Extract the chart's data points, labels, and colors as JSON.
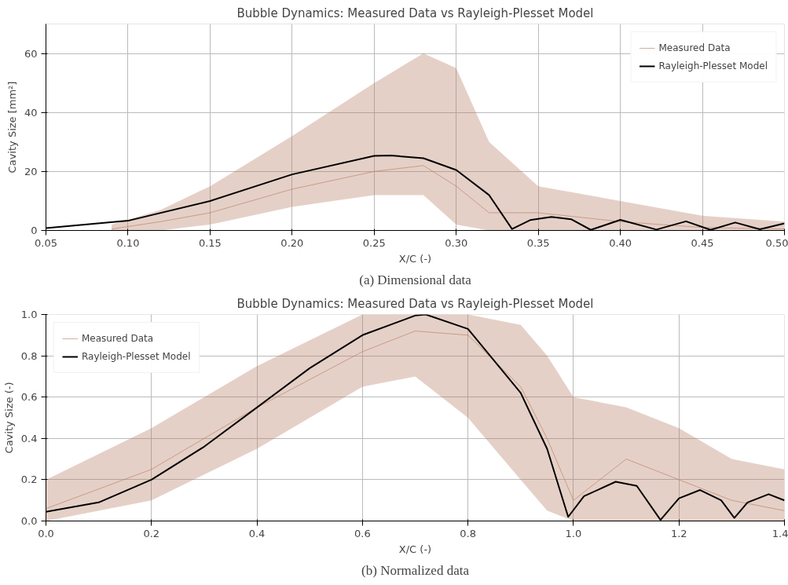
{
  "chart_data": [
    {
      "type": "line",
      "title": "Bubble Dynamics: Measured Data vs Rayleigh-Plesset Model",
      "xlabel": "X/C (-)",
      "ylabel": "Cavity Size [mm²]",
      "annotations": [
        "(a) Dimensional data"
      ],
      "xlim": [
        0.05,
        0.5
      ],
      "ylim": [
        0,
        70
      ],
      "xticks": [
        {
          "value": 0.05,
          "label": "0.05"
        },
        {
          "value": 0.1,
          "label": "0.10"
        },
        {
          "value": 0.15,
          "label": "0.15"
        },
        {
          "value": 0.2,
          "label": "0.20"
        },
        {
          "value": 0.25,
          "label": "0.25"
        },
        {
          "value": 0.3,
          "label": "0.30"
        },
        {
          "value": 0.35,
          "label": "0.35"
        },
        {
          "value": 0.4,
          "label": "0.40"
        },
        {
          "value": 0.45,
          "label": "0.45"
        },
        {
          "value": 0.5,
          "label": "0.50"
        }
      ],
      "yticks": [
        0,
        20,
        40,
        60
      ],
      "grid": true,
      "legend": "top right",
      "series": [
        {
          "name": "Measured Data",
          "color": "#b5785e",
          "x": [
            0.09,
            0.12,
            0.15,
            0.2,
            0.25,
            0.28,
            0.3,
            0.32,
            0.35,
            0.4,
            0.45,
            0.5
          ],
          "values": [
            0.5,
            3,
            6,
            14,
            20,
            22,
            15,
            6,
            6,
            3,
            1,
            0.5
          ],
          "lower": [
            0,
            0,
            2,
            8,
            12,
            12,
            2,
            0,
            0,
            0,
            0,
            0
          ],
          "upper": [
            2,
            7,
            15,
            32,
            50,
            60,
            55,
            30,
            15,
            10,
            5,
            3
          ]
        },
        {
          "name": "Rayleigh-Plesset Model",
          "color": "#000000",
          "x": [
            0.05,
            0.1,
            0.15,
            0.2,
            0.25,
            0.26,
            0.28,
            0.3,
            0.32,
            0.334,
            0.345,
            0.358,
            0.37,
            0.382,
            0.4,
            0.422,
            0.44,
            0.455,
            0.47,
            0.485,
            0.5
          ],
          "values": [
            0.8,
            3.3,
            10,
            19,
            25.3,
            25.4,
            24.5,
            20.5,
            12,
            0.5,
            3.5,
            4.6,
            3.8,
            0.2,
            3.6,
            0.3,
            3.1,
            0.2,
            2.7,
            0.4,
            2.4
          ]
        }
      ]
    },
    {
      "type": "line",
      "title": "Bubble Dynamics: Measured Data vs Rayleigh-Plesset Model",
      "xlabel": "X/C (-)",
      "ylabel": "Cavity Size (-)",
      "annotations": [
        "(b) Normalized data"
      ],
      "xlim": [
        0,
        1.4
      ],
      "ylim": [
        0,
        1
      ],
      "xticks": [
        {
          "value": 0,
          "label": "0.0"
        },
        0.2,
        0.4,
        0.6,
        0.8,
        {
          "value": 1,
          "label": "1.0"
        },
        1.2,
        1.4
      ],
      "yticks": [
        {
          "value": 0,
          "label": "0.0"
        },
        0.2,
        0.4,
        0.6,
        0.8,
        {
          "value": 1,
          "label": "1.0"
        }
      ],
      "grid": true,
      "legend": "top left",
      "series": [
        {
          "name": "Measured Data",
          "color": "#b5785e",
          "x": [
            0,
            0.2,
            0.4,
            0.6,
            0.7,
            0.8,
            0.9,
            0.95,
            1.0,
            1.1,
            1.2,
            1.3,
            1.4
          ],
          "values": [
            0.06,
            0.25,
            0.55,
            0.82,
            0.92,
            0.9,
            0.65,
            0.4,
            0.1,
            0.3,
            0.2,
            0.1,
            0.05
          ],
          "lower": [
            0,
            0.1,
            0.35,
            0.65,
            0.7,
            0.5,
            0.2,
            0.05,
            0,
            0,
            0,
            0,
            0
          ],
          "upper": [
            0.2,
            0.45,
            0.75,
            1,
            1,
            1,
            0.95,
            0.8,
            0.6,
            0.55,
            0.45,
            0.3,
            0.25
          ]
        },
        {
          "name": "Rayleigh-Plesset Model",
          "color": "#000000",
          "x": [
            0,
            0.1,
            0.2,
            0.3,
            0.4,
            0.5,
            0.6,
            0.7,
            0.72,
            0.8,
            0.9,
            0.95,
            0.99,
            1.02,
            1.08,
            1.12,
            1.165,
            1.2,
            1.24,
            1.28,
            1.305,
            1.33,
            1.37,
            1.4
          ],
          "values": [
            0.045,
            0.09,
            0.2,
            0.36,
            0.55,
            0.74,
            0.9,
            0.995,
            1.0,
            0.93,
            0.62,
            0.35,
            0.02,
            0.12,
            0.19,
            0.17,
            0.005,
            0.11,
            0.15,
            0.1,
            0.015,
            0.09,
            0.13,
            0.1
          ]
        }
      ]
    }
  ]
}
